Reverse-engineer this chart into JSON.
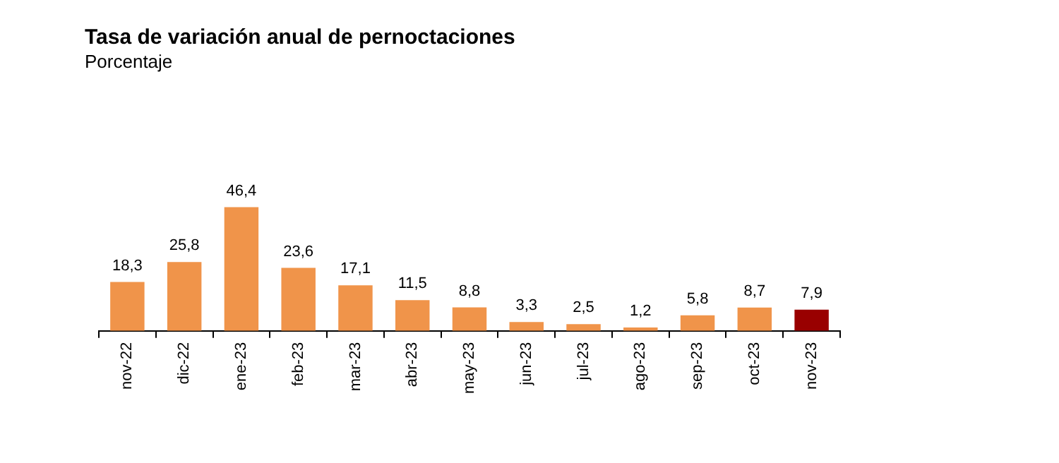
{
  "chart_data": {
    "type": "bar",
    "title": "Tasa de variación anual de pernoctaciones",
    "subtitle": "Porcentaje",
    "categories": [
      "nov-22",
      "dic-22",
      "ene-23",
      "feb-23",
      "mar-23",
      "abr-23",
      "may-23",
      "jun-23",
      "jul-23",
      "ago-23",
      "sep-23",
      "oct-23",
      "nov-23"
    ],
    "values": [
      18.3,
      25.8,
      46.4,
      23.6,
      17.1,
      11.5,
      8.8,
      3.3,
      2.5,
      1.2,
      5.8,
      8.7,
      7.9
    ],
    "colors": [
      "#f0944a",
      "#f0944a",
      "#f0944a",
      "#f0944a",
      "#f0944a",
      "#f0944a",
      "#f0944a",
      "#f0944a",
      "#f0944a",
      "#f0944a",
      "#f0944a",
      "#f0944a",
      "#990000"
    ],
    "value_labels": [
      "18,3",
      "25,8",
      "46,4",
      "23,6",
      "17,1",
      "11,5",
      "8,8",
      "3,3",
      "2,5",
      "1,2",
      "5,8",
      "8,7",
      "7,9"
    ],
    "grid": false,
    "legend": false
  }
}
